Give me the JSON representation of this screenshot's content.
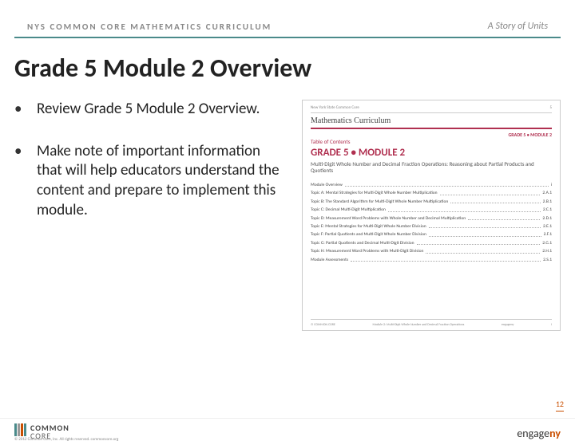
{
  "header": {
    "left": "NYS COMMON CORE MATHEMATICS CURRICULUM",
    "right": "A Story of Units",
    "border_color": "#4a8a8a"
  },
  "title": "Grade 5 Module 2 Overview",
  "bullets": [
    "Review Grade 5 Module 2 Overview.",
    "Make note of important information that will help educators understand the content and prepare to implement this module."
  ],
  "thumbnail": {
    "top_left": "New York State Common Core",
    "math_title": "Mathematics Curriculum",
    "grade_tag": "GRADE 5 • MODULE 2",
    "toc_label": "Table of Contents",
    "grade_module": "GRADE 5 • MODULE 2",
    "subtitle": "Multi-Digit Whole Number and Decimal Fraction Operations: Reasoning about Partial Products and Quotients",
    "toc": [
      {
        "label": "Module Overview",
        "page": "i"
      },
      {
        "label": "Topic A:  Mental Strategies for Multi-Digit Whole Number Multiplication",
        "page": "2.A.1"
      },
      {
        "label": "Topic B:  The Standard Algorithm for Multi-Digit Whole Number Multiplication",
        "page": "2.B.1"
      },
      {
        "label": "Topic C:  Decimal Multi-Digit Multiplication",
        "page": "2.C.1"
      },
      {
        "label": "Topic D:  Measurement Word Problems with Whole Number and Decimal Multiplication",
        "page": "2.D.1"
      },
      {
        "label": "Topic E:  Mental Strategies for Multi-Digit Whole Number Division",
        "page": "2.E.1"
      },
      {
        "label": "Topic F:  Partial Quotients and Multi-Digit Whole Number Division",
        "page": "2.F.1"
      },
      {
        "label": "Topic G:  Partial Quotients and Decimal Multi-Digit Division",
        "page": "2.G.1"
      },
      {
        "label": "Topic H:  Measurement Word Problems with Multi-Digit Division",
        "page": "2.H.1"
      },
      {
        "label": "Module Assessments",
        "page": "2.S.1"
      }
    ],
    "footer_page": "i",
    "footer_engage": "engageny"
  },
  "footer": {
    "common_core": {
      "line1": "COMMON",
      "line2": "CORE"
    },
    "bar_colors": [
      "#4a8a8a",
      "#999",
      "#c94f00",
      "#4a8a8a"
    ],
    "engage": "engage",
    "ny": "ny",
    "page_num": "12",
    "copyright": "© 2012 Common Core, Inc. All rights reserved. commoncore.org"
  }
}
